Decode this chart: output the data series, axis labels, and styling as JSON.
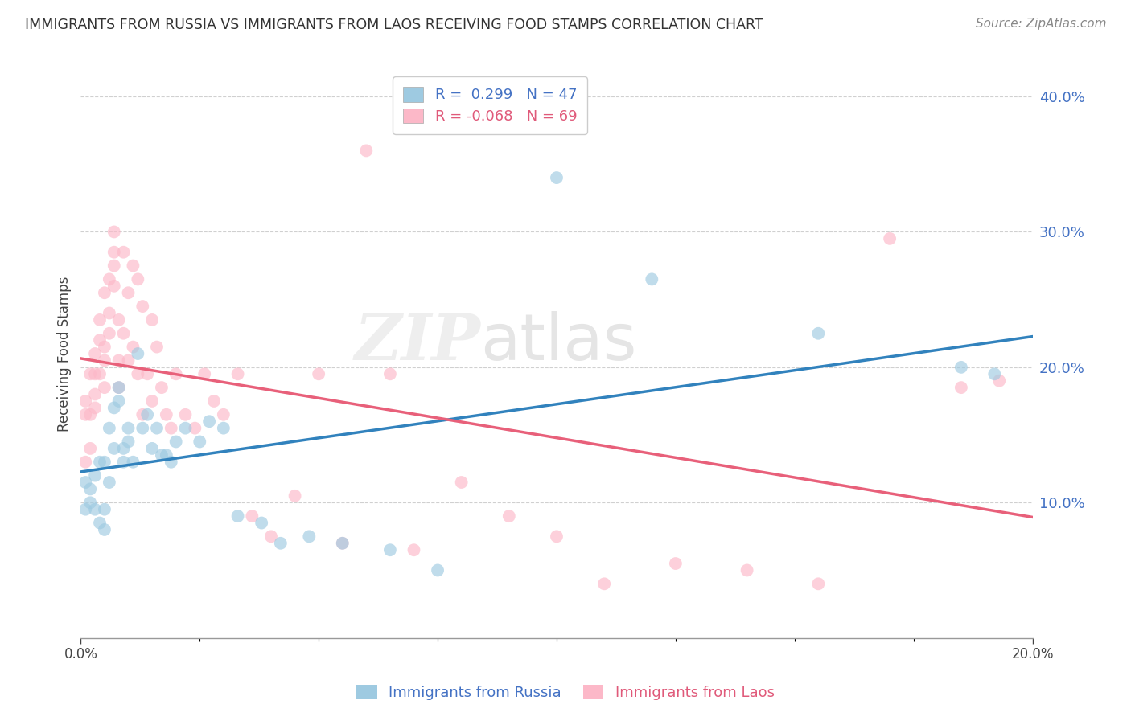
{
  "title": "IMMIGRANTS FROM RUSSIA VS IMMIGRANTS FROM LAOS RECEIVING FOOD STAMPS CORRELATION CHART",
  "source": "Source: ZipAtlas.com",
  "ylabel": "Receiving Food Stamps",
  "russia_R": 0.299,
  "russia_N": 47,
  "laos_R": -0.068,
  "laos_N": 69,
  "russia_color": "#9ecae1",
  "laos_color": "#fcb8c8",
  "russia_line_color": "#3182bd",
  "laos_line_color": "#e8607a",
  "watermark_text": "ZIPatlas",
  "xmin": 0.0,
  "xmax": 0.2,
  "ymin": 0.0,
  "ymax": 0.42,
  "yticks": [
    0.1,
    0.2,
    0.3,
    0.4
  ],
  "xticks_show": [
    0.0,
    0.2
  ],
  "xticks_minor": [
    0.025,
    0.05,
    0.075,
    0.1,
    0.125,
    0.15,
    0.175
  ],
  "russia_x": [
    0.001,
    0.001,
    0.002,
    0.002,
    0.003,
    0.003,
    0.004,
    0.004,
    0.005,
    0.005,
    0.005,
    0.006,
    0.006,
    0.007,
    0.007,
    0.008,
    0.008,
    0.009,
    0.009,
    0.01,
    0.01,
    0.011,
    0.012,
    0.013,
    0.014,
    0.015,
    0.016,
    0.017,
    0.018,
    0.019,
    0.02,
    0.022,
    0.025,
    0.027,
    0.03,
    0.033,
    0.038,
    0.042,
    0.048,
    0.055,
    0.065,
    0.075,
    0.1,
    0.12,
    0.155,
    0.185,
    0.192
  ],
  "russia_y": [
    0.115,
    0.095,
    0.11,
    0.1,
    0.12,
    0.095,
    0.085,
    0.13,
    0.095,
    0.13,
    0.08,
    0.115,
    0.155,
    0.17,
    0.14,
    0.175,
    0.185,
    0.13,
    0.14,
    0.145,
    0.155,
    0.13,
    0.21,
    0.155,
    0.165,
    0.14,
    0.155,
    0.135,
    0.135,
    0.13,
    0.145,
    0.155,
    0.145,
    0.16,
    0.155,
    0.09,
    0.085,
    0.07,
    0.075,
    0.07,
    0.065,
    0.05,
    0.34,
    0.265,
    0.225,
    0.2,
    0.195
  ],
  "laos_x": [
    0.001,
    0.001,
    0.001,
    0.002,
    0.002,
    0.002,
    0.003,
    0.003,
    0.003,
    0.003,
    0.004,
    0.004,
    0.004,
    0.005,
    0.005,
    0.005,
    0.005,
    0.006,
    0.006,
    0.006,
    0.007,
    0.007,
    0.007,
    0.007,
    0.008,
    0.008,
    0.008,
    0.009,
    0.009,
    0.01,
    0.01,
    0.011,
    0.011,
    0.012,
    0.012,
    0.013,
    0.013,
    0.014,
    0.015,
    0.015,
    0.016,
    0.017,
    0.018,
    0.019,
    0.02,
    0.022,
    0.024,
    0.026,
    0.028,
    0.03,
    0.033,
    0.036,
    0.04,
    0.045,
    0.05,
    0.055,
    0.06,
    0.065,
    0.07,
    0.08,
    0.09,
    0.1,
    0.11,
    0.125,
    0.14,
    0.155,
    0.17,
    0.185,
    0.193
  ],
  "laos_y": [
    0.175,
    0.13,
    0.165,
    0.14,
    0.165,
    0.195,
    0.18,
    0.195,
    0.17,
    0.21,
    0.195,
    0.22,
    0.235,
    0.215,
    0.185,
    0.205,
    0.255,
    0.24,
    0.225,
    0.265,
    0.26,
    0.285,
    0.275,
    0.3,
    0.185,
    0.205,
    0.235,
    0.285,
    0.225,
    0.255,
    0.205,
    0.275,
    0.215,
    0.265,
    0.195,
    0.165,
    0.245,
    0.195,
    0.175,
    0.235,
    0.215,
    0.185,
    0.165,
    0.155,
    0.195,
    0.165,
    0.155,
    0.195,
    0.175,
    0.165,
    0.195,
    0.09,
    0.075,
    0.105,
    0.195,
    0.07,
    0.36,
    0.195,
    0.065,
    0.115,
    0.09,
    0.075,
    0.04,
    0.055,
    0.05,
    0.04,
    0.295,
    0.185,
    0.19
  ]
}
